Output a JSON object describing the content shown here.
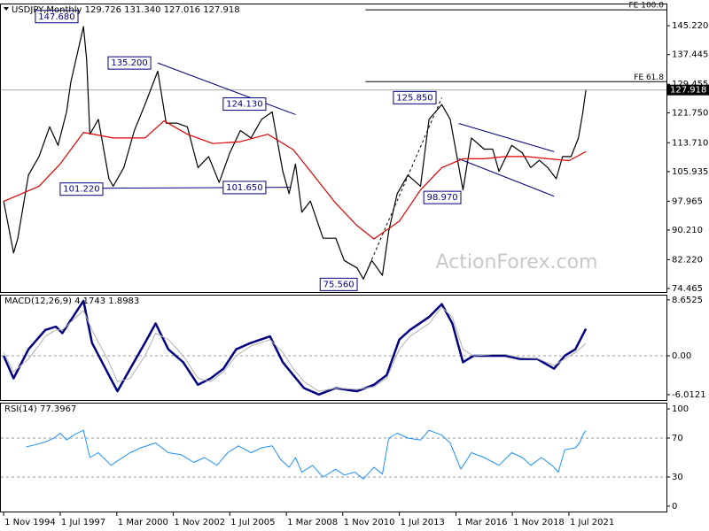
{
  "chart_data": [
    {
      "type": "line",
      "title": "USDJPY,Monthly  129.726 131.340 127.016 127.918",
      "watermark": "ActionForex.com",
      "xlim": [
        1994.66,
        2026.1
      ],
      "ylim": [
        73.5,
        151.2
      ],
      "yticks": [
        {
          "value": 145.22,
          "label": "145.220"
        },
        {
          "value": 137.445,
          "label": "137.445"
        },
        {
          "value": 129.455,
          "label": "129.455"
        },
        {
          "value": 121.75,
          "label": "121.750"
        },
        {
          "value": 113.71,
          "label": "113.710"
        },
        {
          "value": 105.935,
          "label": "105.935"
        },
        {
          "value": 97.965,
          "label": "97.965"
        },
        {
          "value": 90.21,
          "label": "90.210"
        },
        {
          "value": 82.22,
          "label": "82.220"
        },
        {
          "value": 74.465,
          "label": "74.465"
        }
      ],
      "last_price": 127.918,
      "series": [
        {
          "color": "#000000",
          "width": 1.2,
          "x": [
            1994.83,
            1995.3,
            1995.5,
            1996.0,
            1996.5,
            1997.0,
            1997.4,
            1997.8,
            1998.0,
            1998.6,
            1998.75,
            1998.9,
            1999.3,
            1999.8,
            2000.0,
            2000.5,
            2001.0,
            2001.5,
            2002.1,
            2002.5,
            2003.0,
            2003.5,
            2004.0,
            2004.5,
            2005.0,
            2005.5,
            2006.0,
            2006.5,
            2007.0,
            2007.5,
            2008.0,
            2008.3,
            2008.6,
            2008.9,
            2009.3,
            2009.9,
            2010.5,
            2010.9,
            2011.5,
            2011.8,
            2012.2,
            2012.7,
            2013.0,
            2013.4,
            2013.9,
            2014.5,
            2014.9,
            2015.5,
            2015.9,
            2016.5,
            2016.9,
            2017.5,
            2017.9,
            2018.2,
            2018.8,
            2019.3,
            2019.7,
            2020.1,
            2020.5,
            2020.9,
            2021.2,
            2021.6,
            2021.95,
            2022.15,
            2022.3
          ],
          "values": [
            98,
            84,
            88,
            105,
            110,
            118,
            113,
            122,
            130,
            145,
            136,
            116,
            120,
            104,
            102,
            107,
            117,
            124,
            133,
            119,
            119,
            118,
            107,
            110,
            103,
            111,
            117,
            115,
            120,
            122,
            106,
            100,
            108,
            95,
            98,
            88,
            88,
            82,
            80,
            77,
            82,
            78,
            90,
            100,
            105,
            102,
            120,
            124,
            120,
            101,
            115,
            112,
            112,
            106,
            113,
            111,
            107,
            109,
            107,
            104,
            110,
            110,
            115,
            121.7,
            127.918
          ]
        },
        {
          "color": "#e00000",
          "width": 1.2,
          "x": [
            1994.83,
            1996.5,
            1997.5,
            1998.6,
            2000.0,
            2001.5,
            2002.4,
            2003.5,
            2004.7,
            2006.0,
            2007.3,
            2008.5,
            2009.5,
            2010.5,
            2011.5,
            2012.3,
            2013.5,
            2014.5,
            2015.5,
            2016.5,
            2017.5,
            2018.5,
            2019.5,
            2020.5,
            2021.5,
            2022.3
          ],
          "values": [
            97.9,
            102,
            108,
            116.5,
            115,
            115,
            119.6,
            116,
            113.5,
            114,
            116,
            111.8,
            104.6,
            97.4,
            91.4,
            87.8,
            92.6,
            101,
            107,
            109.4,
            109.4,
            110,
            110,
            109.4,
            108.9,
            111.3
          ]
        }
      ],
      "levels": [
        {
          "name": "FE 100.0",
          "value": 149.5,
          "x_start": 2011.9
        },
        {
          "name": "FE 61.8",
          "value": 130.16,
          "x_start": 2011.9
        }
      ],
      "trend_lines": [
        {
          "x": [
            2002.1,
            2008.6
          ],
          "y": [
            135.2,
            121.3
          ],
          "color": "#000080",
          "dashed": false
        },
        {
          "x": [
            1997.6,
            2008.4
          ],
          "y": [
            101.4,
            101.7
          ],
          "color": "#000080",
          "dashed": false
        },
        {
          "x": [
            2016.3,
            2020.8
          ],
          "y": [
            118.9,
            111.3
          ],
          "color": "#000080",
          "dashed": false
        },
        {
          "x": [
            2016.3,
            2020.8
          ],
          "y": [
            109.4,
            99.3
          ],
          "color": "#000080",
          "dashed": false
        },
        {
          "x": [
            2011.8,
            2015.5
          ],
          "y": [
            77,
            125.85
          ],
          "color": "#000000",
          "dashed": true
        }
      ],
      "annotations": [
        {
          "x": 1998.34,
          "value": 147.68,
          "label": "147.680"
        },
        {
          "x": 2001.77,
          "value": 135.2,
          "label": "135.200"
        },
        {
          "x": 2007.2,
          "value": 124.13,
          "label": "124.130"
        },
        {
          "x": 2015.23,
          "value": 125.85,
          "label": "125.850"
        },
        {
          "x": 1999.51,
          "value": 101.22,
          "label": "101.220"
        },
        {
          "x": 2007.2,
          "value": 101.65,
          "label": "101.650"
        },
        {
          "x": 2016.4,
          "value": 98.97,
          "label": "98.970"
        },
        {
          "x": 2011.51,
          "value": 75.56,
          "label": "75.560"
        }
      ]
    },
    {
      "type": "line",
      "title": "MACD(12,26,9) 4.1743 1.8983",
      "xlim": [
        1994.66,
        2026.1
      ],
      "ylim": [
        -6.85,
        9.45
      ],
      "yticks": [
        8.6525,
        {
          "value": 0,
          "label": "0.00"
        },
        -6.0121
      ],
      "reference_lines": [
        0
      ],
      "series": [
        {
          "color": "#000080",
          "width": 2.5,
          "x": [
            1994.83,
            1995.3,
            1996.0,
            1996.8,
            1997.3,
            1997.6,
            1998.6,
            1999.0,
            1999.8,
            2000.2,
            2000.8,
            2001.5,
            2002.0,
            2002.6,
            2003.3,
            2004.0,
            2004.6,
            2005.2,
            2005.8,
            2006.5,
            2007.4,
            2008.0,
            2008.5,
            2009.0,
            2009.7,
            2010.5,
            2011.5,
            2012.3,
            2012.9,
            2013.5,
            2014.0,
            2014.9,
            2015.5,
            2016.0,
            2016.5,
            2017.0,
            2017.9,
            2018.5,
            2019.2,
            2020.0,
            2020.8,
            2021.3,
            2021.8,
            2022.3
          ],
          "values": [
            0,
            -3.5,
            1,
            4,
            4.5,
            3.5,
            8.5,
            2,
            -3,
            -5.5,
            -2,
            2,
            5,
            1,
            -1,
            -4.5,
            -3.5,
            -2,
            1,
            2,
            3,
            -1,
            -3,
            -5,
            -6,
            -5,
            -5.5,
            -4.5,
            -3,
            2.5,
            4,
            6,
            8,
            5,
            -1,
            0,
            0,
            0,
            -0.5,
            -0.5,
            -2,
            0,
            1,
            4.1743
          ]
        },
        {
          "color": "#b0b0b0",
          "width": 1,
          "x": [
            1994.83,
            1995.3,
            1996.0,
            1996.8,
            1997.3,
            1997.6,
            1998.6,
            1999.0,
            1999.8,
            2000.2,
            2000.8,
            2001.5,
            2002.0,
            2002.6,
            2003.3,
            2004.0,
            2004.6,
            2005.2,
            2005.8,
            2006.5,
            2007.4,
            2008.0,
            2008.5,
            2009.0,
            2009.7,
            2010.5,
            2011.5,
            2012.3,
            2012.9,
            2013.5,
            2014.0,
            2014.9,
            2015.5,
            2016.0,
            2016.5,
            2017.0,
            2017.9,
            2018.5,
            2019.2,
            2020.0,
            2020.8,
            2021.3,
            2021.8,
            2022.3
          ],
          "values": [
            0.5,
            -2.5,
            -0.5,
            3,
            4,
            4,
            7,
            4,
            -1,
            -4,
            -3.5,
            0,
            3.5,
            2.5,
            0,
            -3.5,
            -4,
            -2.5,
            0,
            1.5,
            2.5,
            0.5,
            -2,
            -4,
            -5.5,
            -5,
            -5.2,
            -4.8,
            -3.5,
            1,
            3,
            5,
            7.5,
            6,
            1,
            0,
            0.2,
            0.2,
            -0.3,
            -0.4,
            -1.5,
            -0.5,
            0.5,
            1.8983
          ]
        }
      ]
    },
    {
      "type": "line",
      "title": "RSI(14) 77.3967",
      "xlim": [
        1994.66,
        2026.1
      ],
      "ylim": [
        -5.5,
        106.4
      ],
      "yticks": [
        100,
        70,
        30,
        0
      ],
      "reference_lines": [
        70,
        30
      ],
      "xticks": [
        {
          "value": 1994.83,
          "label": "1 Nov 1994"
        },
        {
          "value": 1997.5,
          "label": "1 Jul 1997"
        },
        {
          "value": 2000.17,
          "label": "1 Mar 2000"
        },
        {
          "value": 2002.83,
          "label": "1 Nov 2002"
        },
        {
          "value": 2005.5,
          "label": "1 Jul 2005"
        },
        {
          "value": 2008.17,
          "label": "1 Mar 2008"
        },
        {
          "value": 2010.83,
          "label": "1 Nov 2010"
        },
        {
          "value": 2013.5,
          "label": "1 Jul 2013"
        },
        {
          "value": 2016.17,
          "label": "1 Mar 2016"
        },
        {
          "value": 2018.83,
          "label": "1 Nov 2018"
        },
        {
          "value": 2021.5,
          "label": "1 Jul 2021"
        }
      ],
      "series": [
        {
          "color": "#1e90ff",
          "width": 1,
          "x": [
            1995.9,
            1996.3,
            1996.8,
            1997.2,
            1997.5,
            1997.8,
            1998.2,
            1998.6,
            1998.9,
            1999.3,
            1999.9,
            2000.3,
            2000.8,
            2001.3,
            2002.0,
            2002.6,
            2003.2,
            2003.8,
            2004.3,
            2004.9,
            2005.4,
            2005.9,
            2006.5,
            2007.0,
            2007.5,
            2007.9,
            2008.3,
            2008.6,
            2008.9,
            2009.4,
            2009.9,
            2010.5,
            2010.9,
            2011.4,
            2011.8,
            2012.3,
            2012.7,
            2013.0,
            2013.4,
            2013.9,
            2014.5,
            2014.9,
            2015.5,
            2015.9,
            2016.4,
            2016.9,
            2017.5,
            2018.2,
            2018.8,
            2019.3,
            2019.7,
            2020.2,
            2020.7,
            2021.0,
            2021.3,
            2021.8,
            2022.0,
            2022.2,
            2022.3
          ],
          "values": [
            61,
            63,
            66,
            70,
            75,
            68,
            74,
            78,
            50,
            55,
            42,
            48,
            55,
            60,
            65,
            55,
            53,
            45,
            50,
            42,
            55,
            62,
            55,
            60,
            62,
            48,
            40,
            50,
            35,
            42,
            30,
            38,
            32,
            35,
            28,
            40,
            33,
            70,
            75,
            70,
            68,
            78,
            73,
            65,
            38,
            55,
            50,
            42,
            55,
            50,
            42,
            50,
            42,
            35,
            58,
            60,
            65,
            75,
            77.3967
          ]
        }
      ]
    }
  ]
}
